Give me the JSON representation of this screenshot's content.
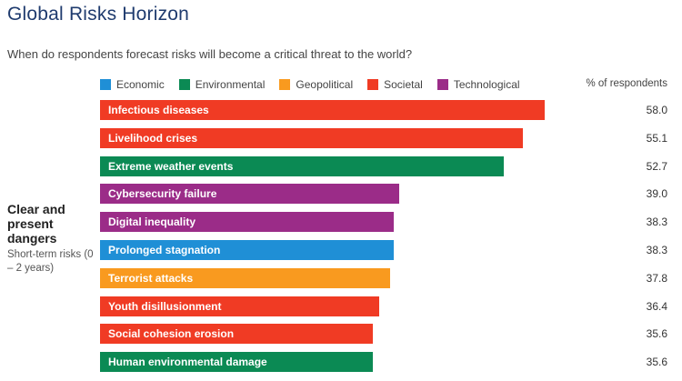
{
  "title": "Global Risks Horizon",
  "subtitle": "When do respondents forecast risks will become a critical threat to the world?",
  "value_header": "% of respondents",
  "group": {
    "title": "Clear and present dangers",
    "subtitle": "Short-term risks (0 – 2 years)"
  },
  "legend": [
    {
      "name": "Economic",
      "color": "#1f8fd6"
    },
    {
      "name": "Environmental",
      "color": "#0b8a54"
    },
    {
      "name": "Geopolitical",
      "color": "#f99a1f"
    },
    {
      "name": "Societal",
      "color": "#f03b24"
    },
    {
      "name": "Technological",
      "color": "#9b2c88"
    }
  ],
  "chart_data": {
    "type": "bar",
    "orientation": "horizontal",
    "title": "Global Risks Horizon",
    "subtitle": "When do respondents forecast risks will become a critical threat to the world?",
    "value_label": "% of respondents",
    "categories": [
      "Infectious diseases",
      "Livelihood crises",
      "Extreme weather events",
      "Cybersecurity failure",
      "Digital inequality",
      "Prolonged stagnation",
      "Terrorist attacks",
      "Youth disillusionment",
      "Social cohesion erosion",
      "Human environmental damage"
    ],
    "values": [
      58.0,
      55.1,
      52.7,
      39.0,
      38.3,
      38.3,
      37.8,
      36.4,
      35.6,
      35.6
    ],
    "value_labels": [
      "58.0",
      "55.1",
      "52.7",
      "39.0",
      "38.3",
      "38.3",
      "37.8",
      "36.4",
      "35.6",
      "35.6"
    ],
    "category_groups": [
      "Societal",
      "Societal",
      "Environmental",
      "Technological",
      "Technological",
      "Economic",
      "Geopolitical",
      "Societal",
      "Societal",
      "Environmental"
    ],
    "xlim": [
      0,
      58.0
    ],
    "grid": false,
    "legend_position": "top"
  }
}
